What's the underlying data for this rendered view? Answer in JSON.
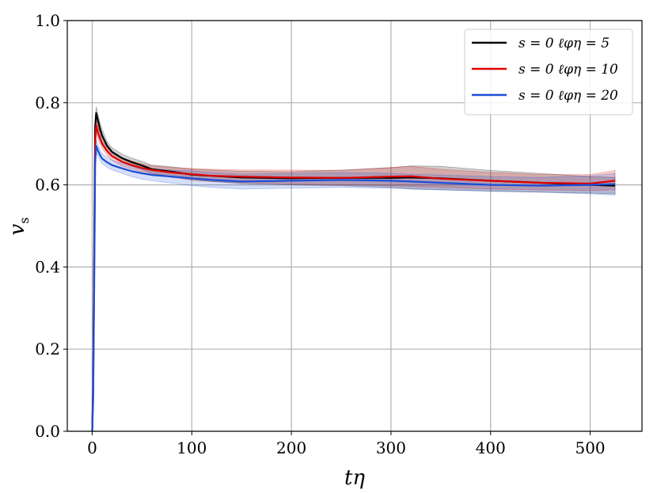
{
  "chart_data": {
    "type": "line",
    "xlabel": "tη",
    "ylabel": "v",
    "ylabel_sub": "s",
    "xlim": [
      -25,
      552
    ],
    "ylim": [
      0.0,
      1.0
    ],
    "xticks": [
      0,
      100,
      200,
      300,
      400,
      500
    ],
    "xtick_labels": [
      "0",
      "100",
      "200",
      "300",
      "400",
      "500"
    ],
    "yticks": [
      0.0,
      0.2,
      0.4,
      0.6,
      0.8,
      1.0
    ],
    "ytick_labels": [
      "0.0",
      "0.2",
      "0.4",
      "0.6",
      "0.8",
      "1.0"
    ],
    "grid": true,
    "legend_position": "top-right",
    "series": [
      {
        "name": "s = 0 ℓφη = 5",
        "color": "#000000",
        "x": [
          0,
          1,
          2,
          3,
          4,
          6,
          8,
          10,
          15,
          20,
          30,
          40,
          50,
          60,
          80,
          100,
          120,
          150,
          200,
          250,
          300,
          320,
          350,
          400,
          450,
          500,
          525
        ],
        "y": [
          0.0,
          0.12,
          0.45,
          0.74,
          0.775,
          0.755,
          0.735,
          0.72,
          0.695,
          0.68,
          0.665,
          0.655,
          0.647,
          0.638,
          0.632,
          0.625,
          0.622,
          0.618,
          0.616,
          0.617,
          0.617,
          0.618,
          0.616,
          0.61,
          0.605,
          0.6,
          0.598
        ],
        "lower": [
          0.0,
          0.1,
          0.42,
          0.72,
          0.76,
          0.74,
          0.72,
          0.705,
          0.685,
          0.67,
          0.655,
          0.645,
          0.637,
          0.628,
          0.62,
          0.612,
          0.608,
          0.603,
          0.6,
          0.598,
          0.594,
          0.59,
          0.588,
          0.585,
          0.582,
          0.58,
          0.578
        ],
        "upper": [
          0.0,
          0.14,
          0.48,
          0.76,
          0.79,
          0.77,
          0.75,
          0.735,
          0.705,
          0.69,
          0.675,
          0.665,
          0.657,
          0.648,
          0.644,
          0.638,
          0.636,
          0.633,
          0.632,
          0.636,
          0.642,
          0.646,
          0.645,
          0.635,
          0.628,
          0.62,
          0.618
        ]
      },
      {
        "name": "s = 0 ℓφη = 10",
        "color": "#e00000",
        "x": [
          0,
          1,
          2,
          3,
          4,
          6,
          8,
          10,
          15,
          20,
          30,
          40,
          50,
          60,
          80,
          100,
          120,
          150,
          200,
          250,
          300,
          320,
          350,
          400,
          450,
          500,
          525
        ],
        "y": [
          0.0,
          0.1,
          0.4,
          0.7,
          0.745,
          0.725,
          0.712,
          0.7,
          0.682,
          0.67,
          0.656,
          0.648,
          0.641,
          0.636,
          0.63,
          0.626,
          0.622,
          0.62,
          0.618,
          0.617,
          0.62,
          0.621,
          0.615,
          0.61,
          0.605,
          0.603,
          0.61
        ],
        "lower": [
          0.0,
          0.08,
          0.37,
          0.68,
          0.73,
          0.71,
          0.7,
          0.69,
          0.672,
          0.66,
          0.646,
          0.638,
          0.631,
          0.626,
          0.618,
          0.612,
          0.608,
          0.605,
          0.602,
          0.6,
          0.598,
          0.596,
          0.594,
          0.59,
          0.588,
          0.586,
          0.588
        ],
        "upper": [
          0.0,
          0.12,
          0.43,
          0.72,
          0.76,
          0.74,
          0.725,
          0.71,
          0.692,
          0.68,
          0.666,
          0.658,
          0.651,
          0.646,
          0.642,
          0.64,
          0.638,
          0.636,
          0.636,
          0.635,
          0.642,
          0.645,
          0.638,
          0.63,
          0.625,
          0.625,
          0.635
        ]
      },
      {
        "name": "s = 0 ℓφη = 20",
        "color": "#1a4fd8",
        "x": [
          0,
          1,
          2,
          3,
          4,
          6,
          8,
          10,
          15,
          20,
          30,
          40,
          50,
          60,
          80,
          100,
          120,
          150,
          200,
          250,
          300,
          320,
          350,
          400,
          450,
          500,
          525
        ],
        "y": [
          0.0,
          0.08,
          0.35,
          0.65,
          0.695,
          0.682,
          0.672,
          0.664,
          0.655,
          0.648,
          0.64,
          0.633,
          0.628,
          0.624,
          0.62,
          0.616,
          0.612,
          0.608,
          0.61,
          0.612,
          0.61,
          0.608,
          0.605,
          0.6,
          0.598,
          0.6,
          0.602
        ],
        "lower": [
          0.0,
          0.06,
          0.32,
          0.63,
          0.68,
          0.668,
          0.66,
          0.652,
          0.643,
          0.636,
          0.628,
          0.62,
          0.614,
          0.61,
          0.604,
          0.598,
          0.594,
          0.59,
          0.592,
          0.594,
          0.592,
          0.59,
          0.588,
          0.584,
          0.582,
          0.578,
          0.575
        ],
        "upper": [
          0.0,
          0.1,
          0.38,
          0.67,
          0.71,
          0.696,
          0.684,
          0.676,
          0.667,
          0.66,
          0.652,
          0.646,
          0.642,
          0.638,
          0.636,
          0.634,
          0.63,
          0.626,
          0.628,
          0.63,
          0.628,
          0.626,
          0.624,
          0.62,
          0.618,
          0.622,
          0.628
        ]
      }
    ]
  }
}
